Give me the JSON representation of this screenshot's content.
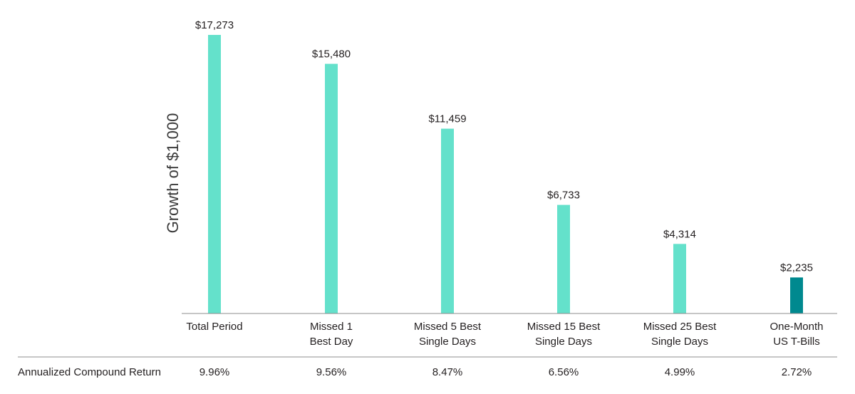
{
  "chart_data": {
    "type": "bar",
    "ylabel": "Growth of $1,000",
    "categories": [
      [
        "Total Period"
      ],
      [
        "Missed 1",
        "Best Day"
      ],
      [
        "Missed 5 Best",
        "Single Days"
      ],
      [
        "Missed 15 Best",
        "Single Days"
      ],
      [
        "Missed 25 Best",
        "Single Days"
      ],
      [
        "One-Month",
        "US T-Bills"
      ]
    ],
    "values": [
      17273,
      15480,
      11459,
      6733,
      4314,
      2235
    ],
    "value_labels": [
      "$17,273",
      "$15,480",
      "$11,459",
      "$6,733",
      "$4,314",
      "$2,235"
    ],
    "bar_colors": [
      "#64e1cb",
      "#64e1cb",
      "#64e1cb",
      "#64e1cb",
      "#64e1cb",
      "#00898f"
    ],
    "ylim": [
      0,
      17273
    ],
    "grid": false,
    "row_label": "Annualized Compound Return",
    "returns": [
      "9.96%",
      "9.56%",
      "8.47%",
      "6.56%",
      "4.99%",
      "2.72%"
    ]
  }
}
